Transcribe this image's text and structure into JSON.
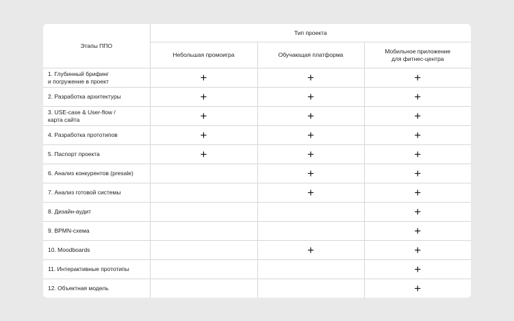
{
  "header": {
    "stages_label": "Этапы ППО",
    "group_label": "Тип проекта",
    "columns": [
      "Небольшая промоигра",
      "Обучающая платформа",
      "Мобильное приложение\nдля фитнес-центра"
    ]
  },
  "mark_symbol": "+",
  "rows": [
    {
      "stage": "1. Глубинный брифинг\nи погружение в проект",
      "marks": [
        true,
        true,
        true
      ]
    },
    {
      "stage": "2. Разработка архитектуры",
      "marks": [
        true,
        true,
        true
      ]
    },
    {
      "stage": "3. USE-case & User-flow /\nкарта сайта",
      "marks": [
        true,
        true,
        true
      ]
    },
    {
      "stage": "4. Разработка прототипов",
      "marks": [
        true,
        true,
        true
      ]
    },
    {
      "stage": "5. Паспорт проекта",
      "marks": [
        true,
        true,
        true
      ]
    },
    {
      "stage": "6. Анализ конкурентов (presale)",
      "marks": [
        false,
        true,
        true
      ]
    },
    {
      "stage": "7. Анализ готовой системы",
      "marks": [
        false,
        true,
        true
      ]
    },
    {
      "stage": "8. Дизайн-аудит",
      "marks": [
        false,
        false,
        true
      ]
    },
    {
      "stage": "9. BPMN-схема",
      "marks": [
        false,
        false,
        true
      ]
    },
    {
      "stage": "10. Moodboards",
      "marks": [
        false,
        true,
        true
      ]
    },
    {
      "stage": "11. Интерактивные прототипы",
      "marks": [
        false,
        false,
        true
      ]
    },
    {
      "stage": "12. Объектная модель",
      "marks": [
        false,
        false,
        true
      ]
    }
  ]
}
